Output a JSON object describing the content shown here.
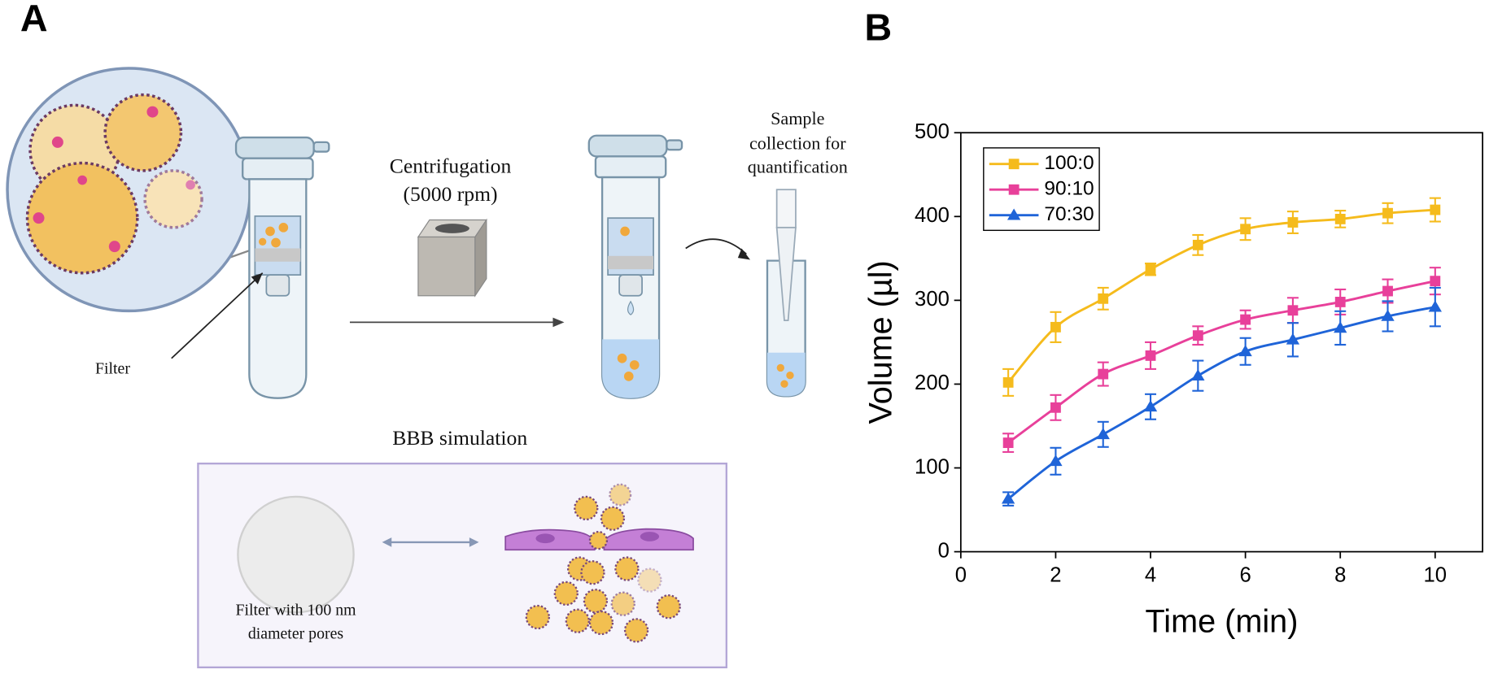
{
  "panel_a": {
    "label": "A",
    "centrifugation": "Centrifugation",
    "speed": "(5000 rpm)",
    "sample_lines": [
      "Sample",
      "collection for",
      "quantification"
    ],
    "filter_label": "Filter",
    "bbb_title": "BBB simulation",
    "filter_desc_lines": [
      "Filter with 100 nm",
      "diameter pores"
    ]
  },
  "chart_data": {
    "type": "line",
    "panel_label": "B",
    "x_label": "Time (min)",
    "y_label": "Volume (µl)",
    "x": [
      1,
      2,
      3,
      4,
      5,
      6,
      7,
      8,
      9,
      10
    ],
    "series": [
      {
        "name": "100:0",
        "color": "#f5bb1c",
        "marker": "square",
        "values": [
          202,
          268,
          302,
          337,
          366,
          385,
          393,
          397,
          404,
          408
        ],
        "errors": [
          16,
          18,
          13,
          7,
          12,
          13,
          13,
          10,
          12,
          14
        ]
      },
      {
        "name": "90:10",
        "color": "#e8409a",
        "marker": "square",
        "values": [
          130,
          172,
          212,
          234,
          258,
          277,
          288,
          298,
          311,
          323
        ],
        "errors": [
          11,
          15,
          14,
          16,
          11,
          11,
          15,
          15,
          14,
          16
        ]
      },
      {
        "name": "70:30",
        "color": "#1f64d8",
        "marker": "triangle",
        "values": [
          63,
          108,
          140,
          173,
          210,
          239,
          253,
          267,
          281,
          292
        ],
        "errors": [
          8,
          16,
          15,
          15,
          18,
          16,
          20,
          20,
          18,
          23
        ]
      }
    ],
    "xlim": [
      0,
      11
    ],
    "ylim": [
      0,
      500
    ],
    "xticks": [
      0,
      2,
      4,
      6,
      8,
      10
    ],
    "yticks": [
      0,
      100,
      200,
      300,
      400,
      500
    ],
    "legend": "upper left",
    "grid": false
  }
}
